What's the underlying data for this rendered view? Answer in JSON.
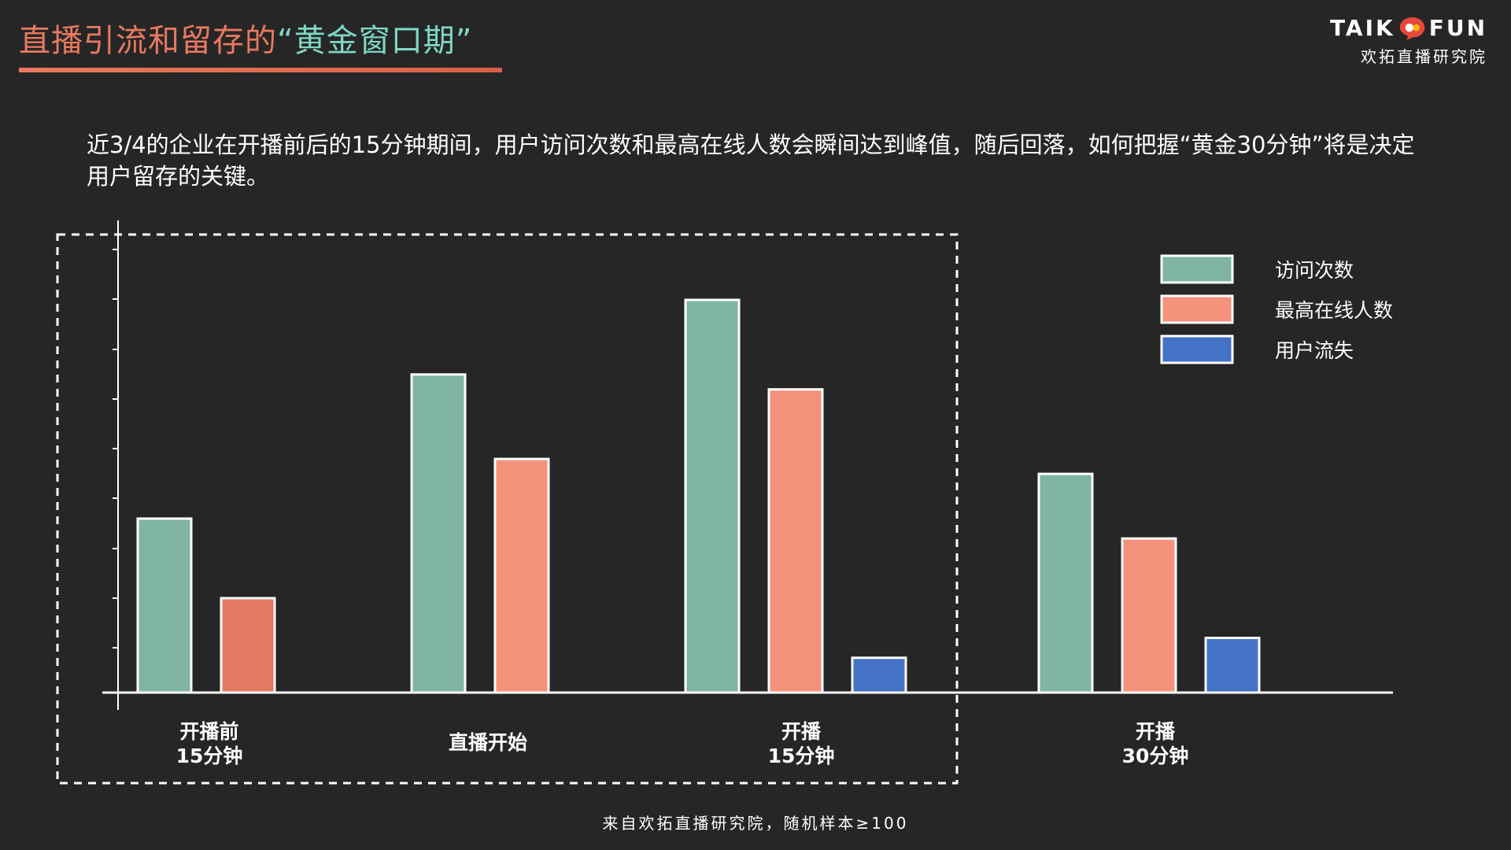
{
  "title": {
    "main": "直播引流和留存的",
    "highlight": "“黄金窗口期”"
  },
  "brand": {
    "top_left": "TAIK",
    "top_right": "FUN",
    "subtitle": "欢拓直播研究院"
  },
  "intro": "近3/4的企业在开播前后的15分钟期间，用户访问次数和最高在线人数会瞬间达到峰值，随后回落，如何把握“黄金30分钟”将是决定用户留存的关键。",
  "footnote": "来自欢拓直播研究院，随机样本≥100",
  "colors": {
    "visits": "#7fb5a1",
    "peak": "#f4927b",
    "peak_first": "#e57860",
    "loss": "#4472c4"
  },
  "chart_data": {
    "type": "bar",
    "categories": [
      "开播前\n15分钟",
      "直播开始",
      "开播\n15分钟",
      "开播\n30分钟"
    ],
    "series": [
      {
        "name": "访问次数",
        "values": [
          35,
          64,
          79,
          44
        ]
      },
      {
        "name": "最高在线人数",
        "values": [
          19,
          47,
          61,
          31
        ]
      },
      {
        "name": "用户流失",
        "values": [
          null,
          null,
          7,
          11
        ]
      }
    ],
    "legend_position": "top-right",
    "ylim": [
      0,
      95
    ],
    "y_tick_labels": "none",
    "highlight_region": "开播前15分钟 → 开播15分钟 (dashed box)"
  }
}
